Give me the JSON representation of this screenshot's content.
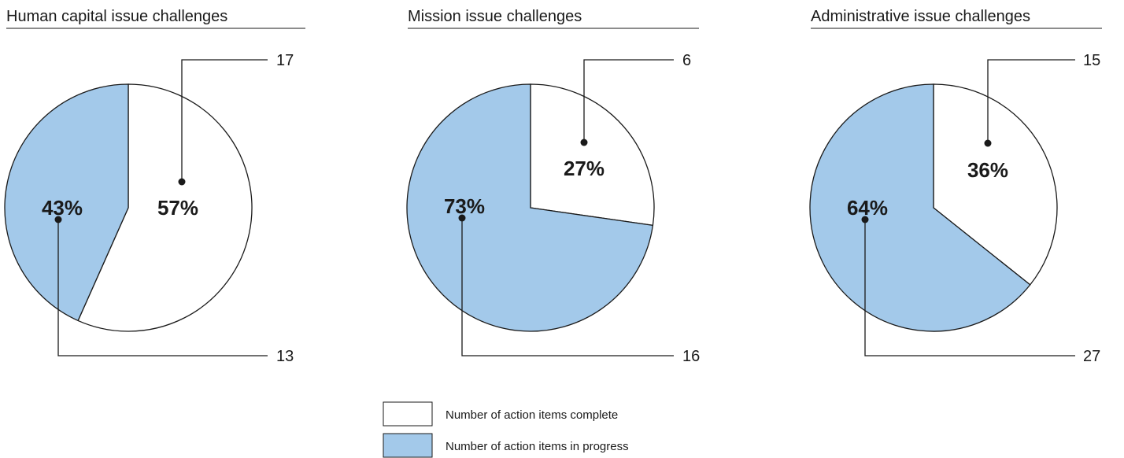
{
  "colors": {
    "complete": "#ffffff",
    "in_progress": "#a3c9ea",
    "stroke": "#1a1a1a"
  },
  "legend": {
    "complete": "Number of action items complete",
    "in_progress": "Number of action items in progress"
  },
  "chart_data": [
    {
      "type": "pie",
      "title": "Human capital issue challenges",
      "categories": [
        "Number of action items complete",
        "Number of action items in progress"
      ],
      "values": [
        17,
        13
      ],
      "percent_labels": [
        "57%",
        "43%"
      ],
      "count_labels": [
        "17",
        "13"
      ]
    },
    {
      "type": "pie",
      "title": "Mission issue challenges",
      "categories": [
        "Number of action items complete",
        "Number of action items in progress"
      ],
      "values": [
        6,
        16
      ],
      "percent_labels": [
        "27%",
        "73%"
      ],
      "count_labels": [
        "6",
        "16"
      ]
    },
    {
      "type": "pie",
      "title": "Administrative issue challenges",
      "categories": [
        "Number of action items complete",
        "Number of action items in progress"
      ],
      "values": [
        15,
        27
      ],
      "percent_labels": [
        "36%",
        "64%"
      ],
      "count_labels": [
        "15",
        "27"
      ]
    }
  ]
}
